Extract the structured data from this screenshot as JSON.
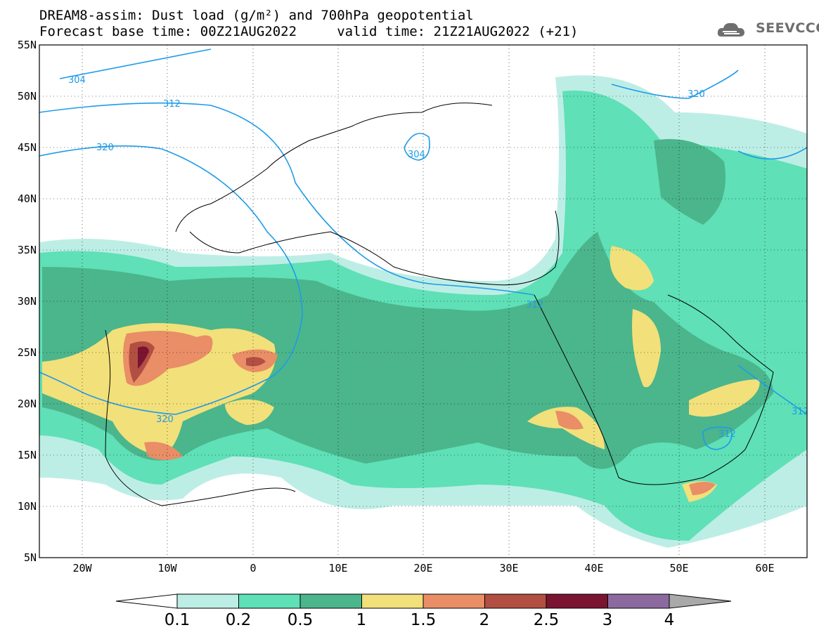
{
  "title": {
    "line1": "DREAM8-assim: Dust load (g/m²) and 700hPa geopotential",
    "line2": "Forecast base time: 00Z21AUG2022     valid time: 21Z21AUG2022 (+21)"
  },
  "logo": {
    "text": "SEEVCCC",
    "icon": "cloud-logo-icon"
  },
  "axes": {
    "lat_labels": [
      "55N",
      "50N",
      "45N",
      "40N",
      "35N",
      "30N",
      "25N",
      "20N",
      "15N",
      "10N",
      "5N"
    ],
    "lon_labels": [
      "20W",
      "10W",
      "0",
      "10E",
      "20E",
      "30E",
      "40E",
      "50E",
      "60E"
    ],
    "lon_range": [
      -25,
      65
    ],
    "lat_range": [
      5,
      55
    ]
  },
  "contours": {
    "geopotential_labels": [
      "304",
      "312",
      "320",
      "304",
      "312",
      "320",
      "312",
      "312",
      "320"
    ]
  },
  "colorbar": {
    "levels": [
      "0.1",
      "0.2",
      "0.5",
      "1",
      "1.5",
      "2",
      "2.5",
      "3",
      "4"
    ],
    "colors": [
      "#bdeee6",
      "#5fe0b6",
      "#4bb58c",
      "#f2e07a",
      "#e98e66",
      "#b24f42",
      "#7a1431",
      "#8c6aa0",
      "#a9a9a9"
    ]
  }
}
